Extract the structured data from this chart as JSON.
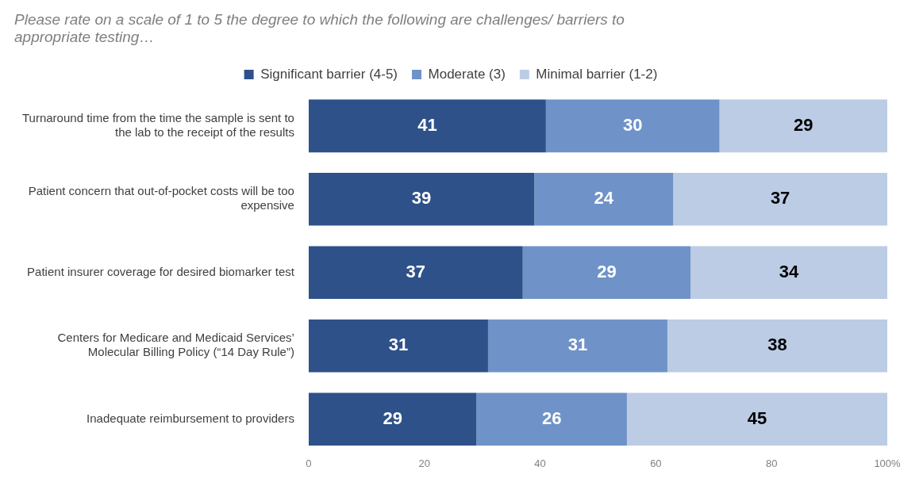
{
  "chart_data": {
    "type": "bar",
    "orientation": "horizontal",
    "stacked": true,
    "title": "Please rate on a scale of 1 to 5 the degree to which the following are challenges/ barriers to appropriate testing…",
    "categories": [
      "Turnaround time from the time the sample is sent to the lab to the receipt of the results",
      "Patient concern that out-of-pocket costs will be too expensive",
      "Patient insurer coverage for desired biomarker test",
      "Centers for Medicare and Medicaid Services’ Molecular Billing Policy (“14 Day Rule”)",
      "Inadequate reimbursement to providers"
    ],
    "series": [
      {
        "name": "Significant barrier (4-5)",
        "color": "#2f5189",
        "values": [
          41,
          39,
          37,
          31,
          29
        ]
      },
      {
        "name": "Moderate (3)",
        "color": "#6f93c8",
        "values": [
          30,
          24,
          29,
          31,
          26
        ]
      },
      {
        "name": "Minimal barrier (1-2)",
        "color": "#bccce5",
        "values": [
          29,
          37,
          34,
          38,
          45
        ]
      }
    ],
    "xlim": [
      0,
      100
    ],
    "xticks": [
      0,
      20,
      40,
      60,
      80,
      {
        "value": 100,
        "label": "100%"
      }
    ],
    "grid": false,
    "legend": "top",
    "data_labels": true
  }
}
